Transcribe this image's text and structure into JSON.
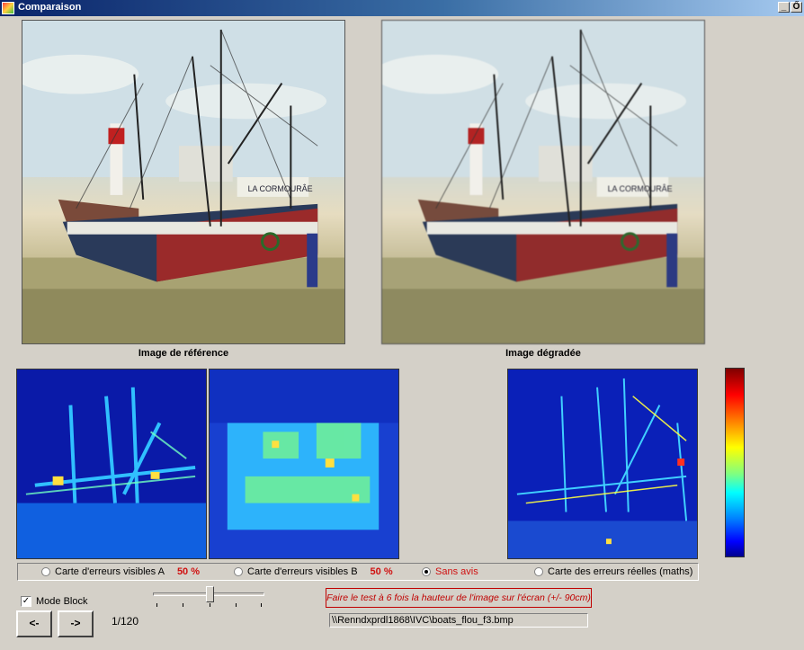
{
  "window": {
    "title": "Comparaison",
    "minimize_label": "_",
    "restore_label": "Ő"
  },
  "images": {
    "reference_caption": "Image de référence",
    "degraded_caption": "Image dégradée",
    "boat_name": "LA CORMOURÂE"
  },
  "options": {
    "items": [
      {
        "label": "Carte d'erreurs visibles A",
        "percent": "50 %",
        "checked": false
      },
      {
        "label": "Carte d'erreurs visibles B",
        "percent": "50 %",
        "checked": false
      },
      {
        "label": "Sans avis",
        "percent": "",
        "checked": true
      },
      {
        "label": "Carte des erreurs réelles (maths)",
        "percent": "",
        "checked": false
      }
    ]
  },
  "controls": {
    "mode_block_label": "Mode Block",
    "mode_block_checked": true,
    "prev_label": "<-",
    "next_label": "->",
    "counter": "1/120",
    "warning": "Faire le test à 6 fois la hauteur de l'image sur l'écran (+/- 90cm)",
    "file_path": "\\\\Renndxprdl1868\\IVC\\boats_flou_f3.bmp"
  },
  "colors": {
    "titlebar": "#0a246a",
    "background": "#d4d0c8",
    "warning": "#c00000",
    "percent": "#d01010"
  }
}
